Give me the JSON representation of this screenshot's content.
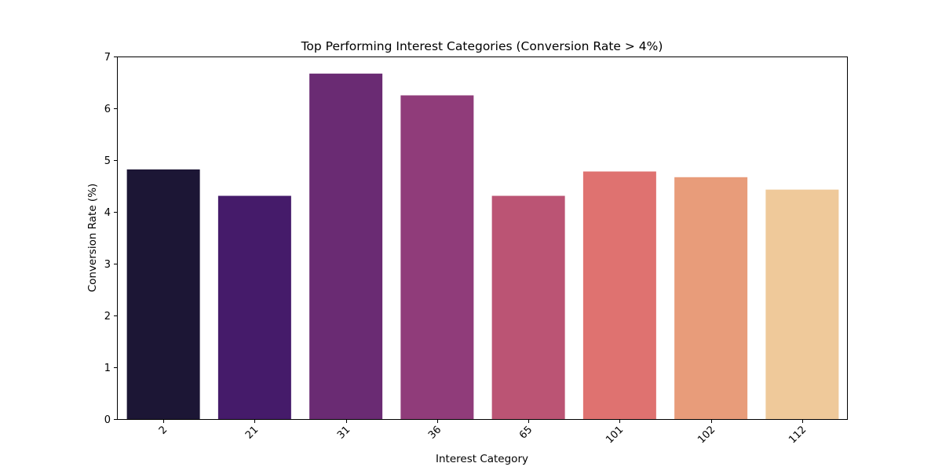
{
  "chart_data": {
    "type": "bar",
    "title": "Top Performing Interest Categories (Conversion Rate > 4%)",
    "xlabel": "Interest Category",
    "ylabel": "Conversion Rate (%)",
    "categories": [
      "2",
      "21",
      "31",
      "36",
      "65",
      "101",
      "102",
      "112"
    ],
    "values": [
      4.82,
      4.31,
      6.67,
      6.25,
      4.31,
      4.78,
      4.67,
      4.43
    ],
    "colors": [
      "#1c1635",
      "#451b6a",
      "#6a2b73",
      "#903c7a",
      "#bb5474",
      "#df7270",
      "#e89c7a",
      "#efc99a"
    ],
    "ylim": [
      0,
      7
    ],
    "yticks": [
      "0",
      "1",
      "2",
      "3",
      "4",
      "5",
      "6",
      "7"
    ],
    "grid": false,
    "legend": "none"
  }
}
